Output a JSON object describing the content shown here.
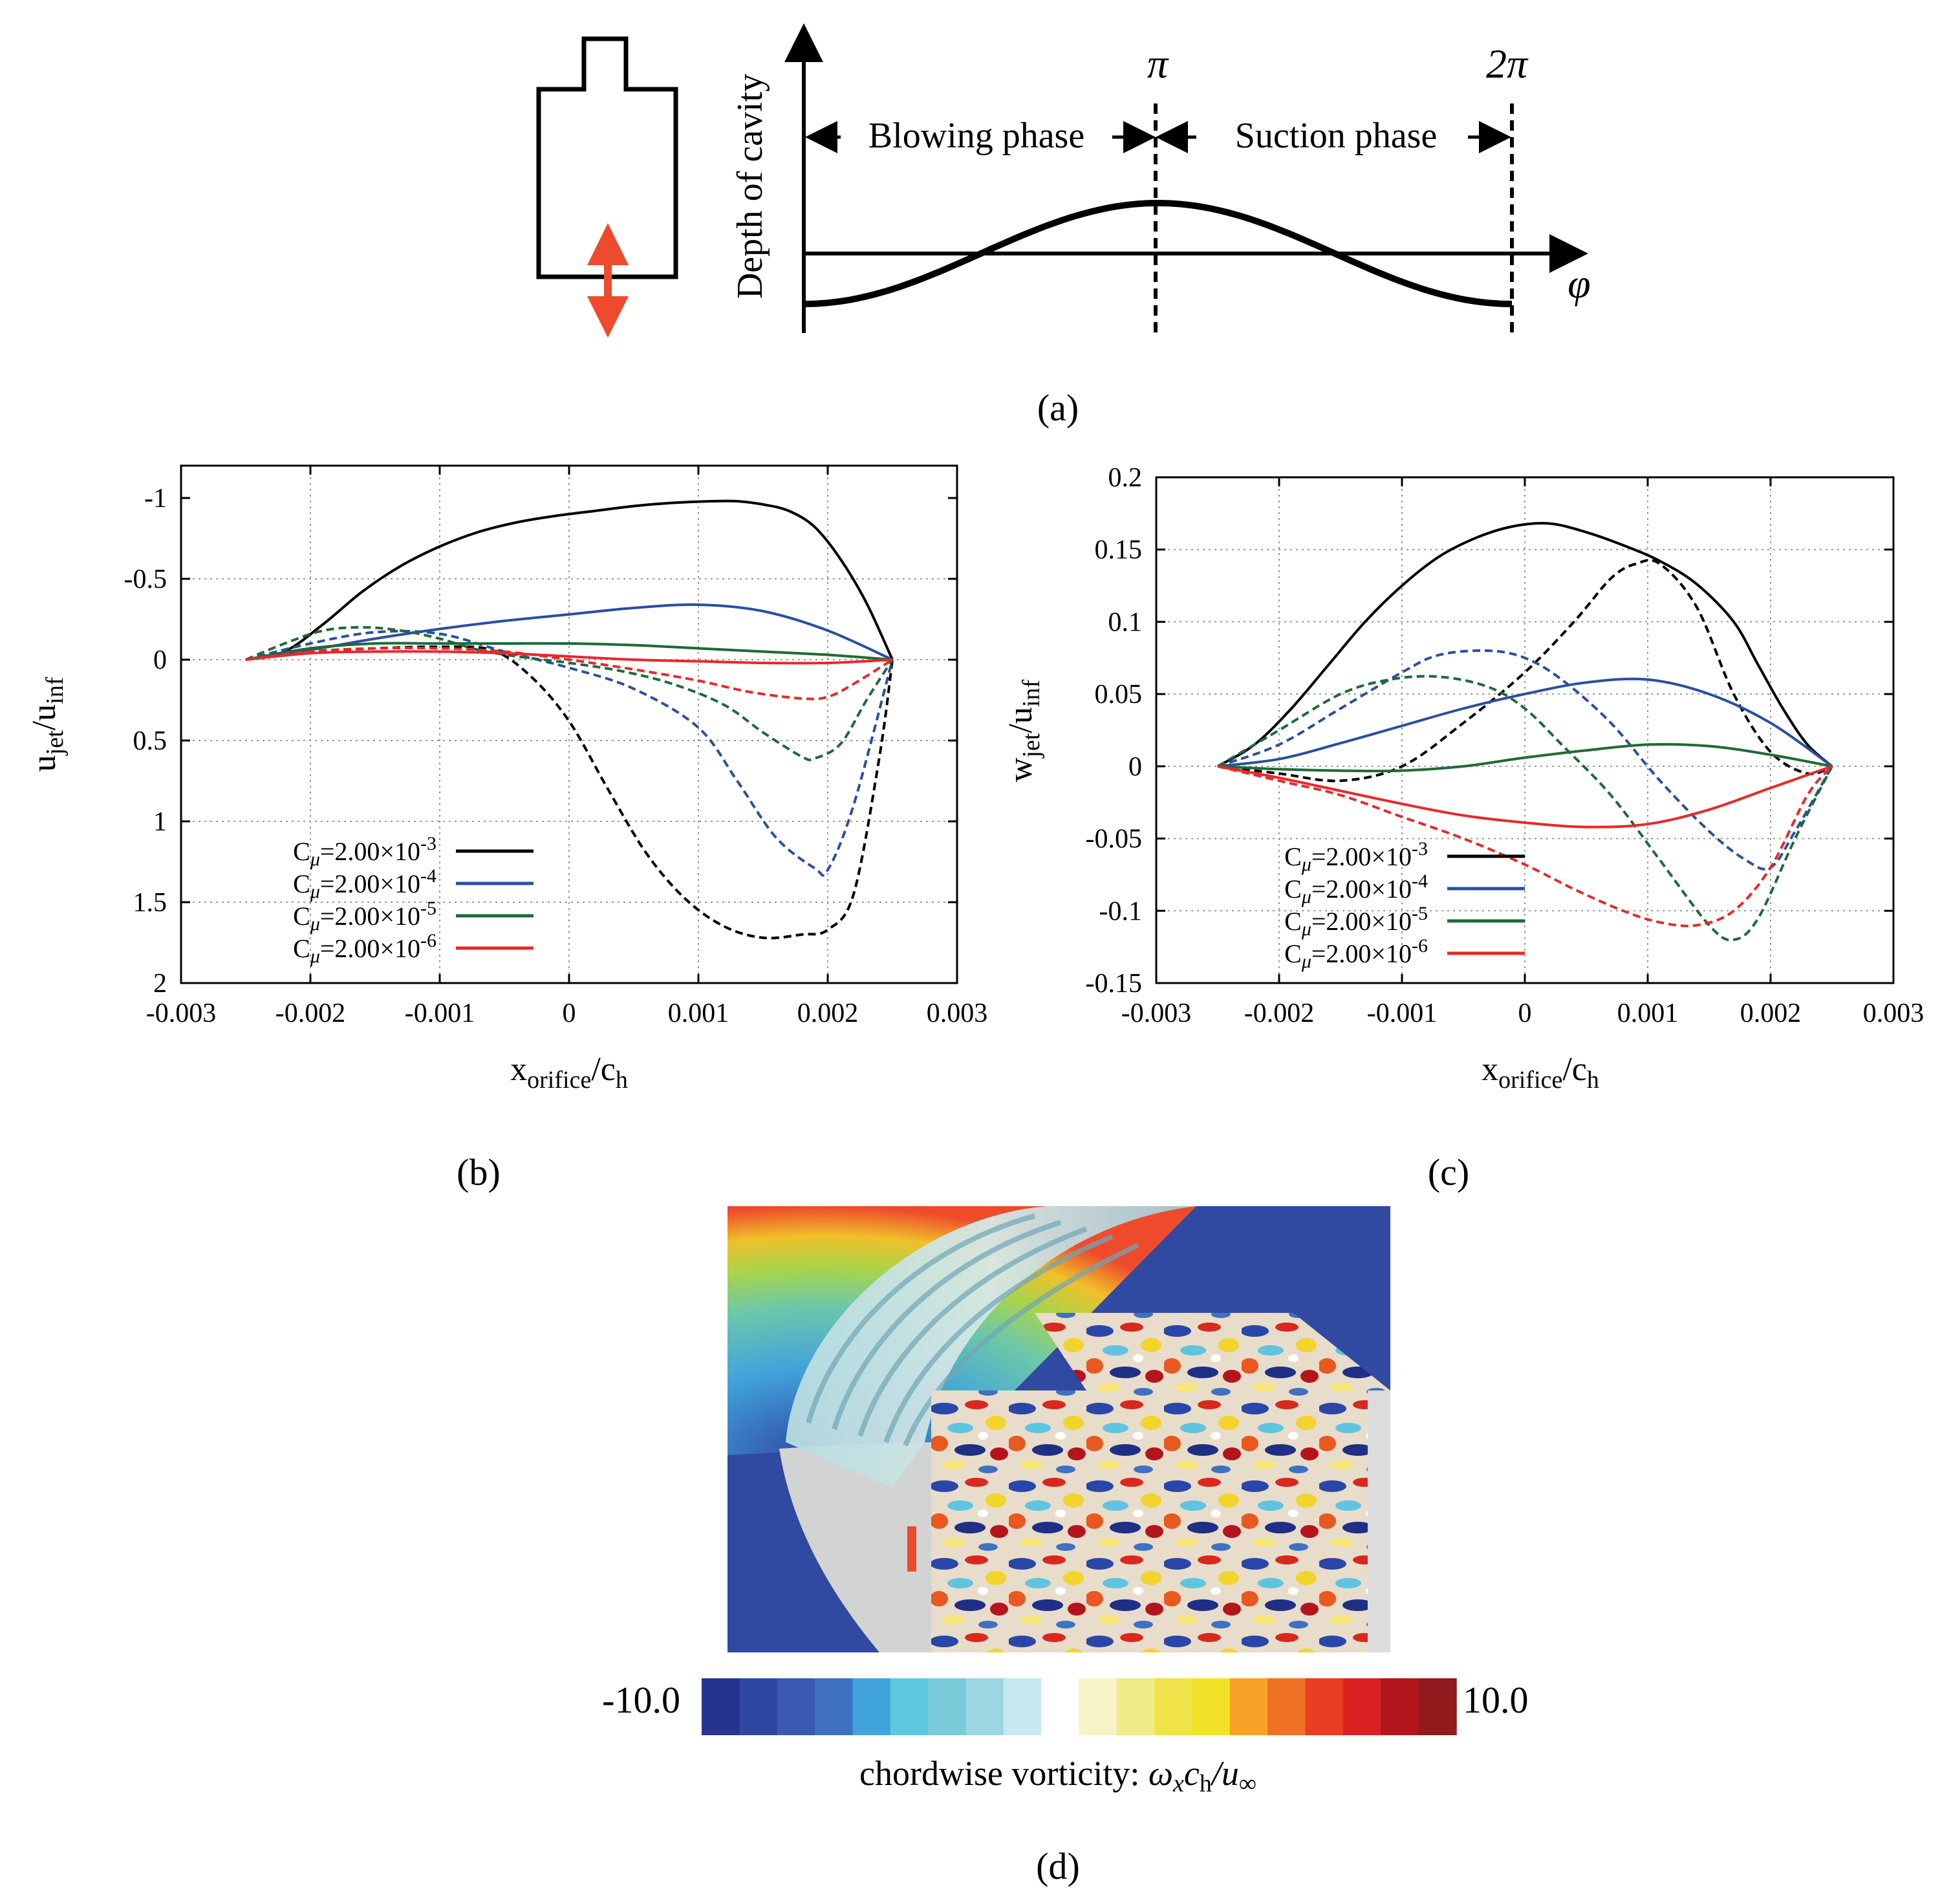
{
  "panel_labels": {
    "a": "(a)",
    "b": "(b)",
    "c": "(c)",
    "d": "(d)"
  },
  "panel_a": {
    "ylabel": "Depth of cavity",
    "xlabel": "φ",
    "pi_label": "π",
    "two_pi_label": "2π",
    "blowing_label": "Blowing phase",
    "suction_label": "Suction phase",
    "arrow_color": "#ee4a2c"
  },
  "chart_data": [
    {
      "id": "b",
      "type": "line",
      "xlabel_main": "x",
      "xlabel_sub": "orifice",
      "xlabel_tail": "/c",
      "xlabel_sub2": "h",
      "ylabel_main": "u",
      "ylabel_sub": "jet",
      "ylabel_tail": "/u",
      "ylabel_sub2": "inf",
      "xlim": [
        -0.003,
        0.003
      ],
      "ylim": [
        2,
        -1.2
      ],
      "xticks": [
        -0.003,
        -0.002,
        -0.001,
        0,
        0.001,
        0.002,
        0.003
      ],
      "xtick_labels": [
        "-0.003",
        "-0.002",
        "-0.001",
        "0",
        "0.001",
        "0.002",
        "0.003"
      ],
      "yticks": [
        -1,
        -0.5,
        0,
        0.5,
        1,
        1.5,
        2
      ],
      "ytick_labels": [
        "-1",
        "-0.5",
        "0",
        "0.5",
        "1",
        "1.5",
        "2"
      ],
      "grid": true,
      "legend": [
        {
          "base": "C",
          "sub": "μ",
          "eq": "=2.00×10",
          "exp": "-3",
          "color": "#000000"
        },
        {
          "base": "C",
          "sub": "μ",
          "eq": "=2.00×10",
          "exp": "-4",
          "color": "#2a4ea3"
        },
        {
          "base": "C",
          "sub": "μ",
          "eq": "=2.00×10",
          "exp": "-5",
          "color": "#1e6a36"
        },
        {
          "base": "C",
          "sub": "μ",
          "eq": "=2.00×10",
          "exp": "-6",
          "color": "#e8282a"
        }
      ],
      "series": [
        {
          "name": "2.00e-3 solid",
          "color": "#000000",
          "dash": false,
          "x": [
            -0.0025,
            -0.0022,
            -0.0019,
            -0.0016,
            -0.0013,
            -0.001,
            -0.0007,
            -0.0004,
            -0.0001,
            0.0002,
            0.0005,
            0.0008,
            0.0011,
            0.0013,
            0.0015,
            0.0017,
            0.0019,
            0.0021,
            0.0023,
            0.0025
          ],
          "y": [
            0,
            -0.05,
            -0.22,
            -0.42,
            -0.58,
            -0.7,
            -0.79,
            -0.85,
            -0.89,
            -0.92,
            -0.95,
            -0.97,
            -0.98,
            -0.98,
            -0.96,
            -0.92,
            -0.82,
            -0.62,
            -0.35,
            0
          ]
        },
        {
          "name": "2.00e-3 dashed",
          "color": "#000000",
          "dash": true,
          "x": [
            -0.0025,
            -0.002,
            -0.0015,
            -0.001,
            -0.0006,
            -0.0003,
            0,
            0.0003,
            0.0006,
            0.0009,
            0.0012,
            0.0015,
            0.0018,
            0.002,
            0.0022,
            0.0024,
            0.0025
          ],
          "y": [
            0,
            -0.05,
            -0.07,
            -0.08,
            -0.06,
            0.1,
            0.38,
            0.8,
            1.2,
            1.48,
            1.65,
            1.72,
            1.7,
            1.67,
            1.45,
            0.6,
            0
          ]
        },
        {
          "name": "2.00e-4 solid",
          "color": "#2a4ea3",
          "dash": false,
          "x": [
            -0.0025,
            -0.002,
            -0.0015,
            -0.001,
            -0.0005,
            0,
            0.0005,
            0.001,
            0.0015,
            0.002,
            0.0025
          ],
          "y": [
            0,
            -0.06,
            -0.13,
            -0.19,
            -0.24,
            -0.28,
            -0.32,
            -0.34,
            -0.3,
            -0.18,
            0
          ]
        },
        {
          "name": "2.00e-4 dashed",
          "color": "#2a4ea3",
          "dash": true,
          "x": [
            -0.0025,
            -0.002,
            -0.0015,
            -0.001,
            -0.0005,
            0,
            0.0005,
            0.001,
            0.0013,
            0.0016,
            0.0019,
            0.002,
            0.0022,
            0.0025
          ],
          "y": [
            0,
            -0.1,
            -0.17,
            -0.16,
            -0.05,
            0.05,
            0.18,
            0.42,
            0.75,
            1.1,
            1.29,
            1.3,
            0.9,
            0
          ]
        },
        {
          "name": "2.00e-5 solid",
          "color": "#1e6a36",
          "dash": false,
          "x": [
            -0.0025,
            -0.002,
            -0.0015,
            -0.001,
            -0.0005,
            0,
            0.0005,
            0.001,
            0.0015,
            0.002,
            0.0025
          ],
          "y": [
            0,
            -0.07,
            -0.1,
            -0.1,
            -0.1,
            -0.1,
            -0.09,
            -0.07,
            -0.05,
            -0.03,
            0
          ]
        },
        {
          "name": "2.00e-5 dashed",
          "color": "#1e6a36",
          "dash": true,
          "x": [
            -0.0025,
            -0.0022,
            -0.0019,
            -0.0016,
            -0.0013,
            -0.001,
            -0.0007,
            -0.0004,
            0,
            0.0004,
            0.0008,
            0.0012,
            0.0015,
            0.0018,
            0.0019,
            0.0021,
            0.0023,
            0.0025
          ],
          "y": [
            0,
            -0.1,
            -0.18,
            -0.2,
            -0.18,
            -0.13,
            -0.06,
            -0.02,
            0.02,
            0.07,
            0.15,
            0.28,
            0.45,
            0.6,
            0.61,
            0.52,
            0.25,
            0
          ]
        },
        {
          "name": "2.00e-6 solid",
          "color": "#e8282a",
          "dash": false,
          "x": [
            -0.0025,
            -0.002,
            -0.0015,
            -0.001,
            -0.0005,
            0,
            0.0005,
            0.001,
            0.0015,
            0.002,
            0.0025
          ],
          "y": [
            0,
            -0.04,
            -0.05,
            -0.05,
            -0.04,
            -0.02,
            0,
            0.01,
            0.02,
            0.02,
            0
          ]
        },
        {
          "name": "2.00e-6 dashed",
          "color": "#e8282a",
          "dash": true,
          "x": [
            -0.0025,
            -0.002,
            -0.0015,
            -0.001,
            -0.0005,
            0,
            0.0005,
            0.001,
            0.0014,
            0.0018,
            0.002,
            0.0022,
            0.0025
          ],
          "y": [
            0,
            -0.05,
            -0.07,
            -0.07,
            -0.05,
            0,
            0.06,
            0.13,
            0.2,
            0.24,
            0.23,
            0.15,
            0
          ]
        }
      ]
    },
    {
      "id": "c",
      "type": "line",
      "xlabel_main": "x",
      "xlabel_sub": "orifice",
      "xlabel_tail": "/c",
      "xlabel_sub2": "h",
      "ylabel_main": "w",
      "ylabel_sub": "jet",
      "ylabel_tail": "/u",
      "ylabel_sub2": "inf",
      "xlim": [
        -0.003,
        0.003
      ],
      "ylim": [
        -0.15,
        0.2
      ],
      "xticks": [
        -0.003,
        -0.002,
        -0.001,
        0,
        0.001,
        0.002,
        0.003
      ],
      "xtick_labels": [
        "-0.003",
        "-0.002",
        "-0.001",
        "0",
        "0.001",
        "0.002",
        "0.003"
      ],
      "yticks": [
        0.2,
        0.15,
        0.1,
        0.05,
        0,
        -0.05,
        -0.1,
        -0.15
      ],
      "ytick_labels": [
        "0.2",
        "0.15",
        "0.1",
        "0.05",
        "0",
        "-0.05",
        "-0.1",
        "-0.15"
      ],
      "grid": true,
      "legend": [
        {
          "base": "C",
          "sub": "μ",
          "eq": "=2.00×10",
          "exp": "-3",
          "color": "#000000"
        },
        {
          "base": "C",
          "sub": "μ",
          "eq": "=2.00×10",
          "exp": "-4",
          "color": "#2a4ea3"
        },
        {
          "base": "C",
          "sub": "μ",
          "eq": "=2.00×10",
          "exp": "-5",
          "color": "#1e6a36"
        },
        {
          "base": "C",
          "sub": "μ",
          "eq": "=2.00×10",
          "exp": "-6",
          "color": "#e8282a"
        }
      ],
      "series": [
        {
          "name": "2.00e-3 solid",
          "color": "#000000",
          "dash": false,
          "x": [
            -0.0025,
            -0.0022,
            -0.0019,
            -0.0016,
            -0.0013,
            -0.001,
            -0.0007,
            -0.0004,
            -0.0001,
            0.0002,
            0.0005,
            0.0008,
            0.0011,
            0.0014,
            0.0017,
            0.0019,
            0.0021,
            0.0023,
            0.0025
          ],
          "y": [
            0,
            0.015,
            0.04,
            0.07,
            0.1,
            0.125,
            0.145,
            0.158,
            0.166,
            0.168,
            0.162,
            0.153,
            0.142,
            0.126,
            0.1,
            0.07,
            0.04,
            0.015,
            0
          ]
        },
        {
          "name": "2.00e-3 dashed",
          "color": "#000000",
          "dash": true,
          "x": [
            -0.0025,
            -0.002,
            -0.0015,
            -0.001,
            -0.0005,
            0,
            0.0004,
            0.0007,
            0.0009,
            0.0011,
            0.0014,
            0.0017,
            0.002,
            0.0023,
            0.0025
          ],
          "y": [
            0,
            -0.005,
            -0.01,
            0,
            0.03,
            0.065,
            0.1,
            0.13,
            0.14,
            0.14,
            0.11,
            0.05,
            0.01,
            -0.005,
            0
          ]
        },
        {
          "name": "2.00e-4 solid",
          "color": "#2a4ea3",
          "dash": false,
          "x": [
            -0.0025,
            -0.002,
            -0.0015,
            -0.001,
            -0.0005,
            0,
            0.0005,
            0.001,
            0.0015,
            0.002,
            0.0025
          ],
          "y": [
            0,
            0.005,
            0.016,
            0.028,
            0.04,
            0.05,
            0.058,
            0.06,
            0.05,
            0.03,
            0
          ]
        },
        {
          "name": "2.00e-4 dashed",
          "color": "#2a4ea3",
          "dash": true,
          "x": [
            -0.0025,
            -0.002,
            -0.0015,
            -0.001,
            -0.0007,
            -0.0003,
            0,
            0.0003,
            0.0007,
            0.0011,
            0.0015,
            0.0018,
            0.002,
            0.0022,
            0.0025
          ],
          "y": [
            0,
            0.015,
            0.04,
            0.065,
            0.077,
            0.08,
            0.075,
            0.06,
            0.03,
            -0.01,
            -0.045,
            -0.065,
            -0.07,
            -0.045,
            0
          ]
        },
        {
          "name": "2.00e-5 solid",
          "color": "#1e6a36",
          "dash": false,
          "x": [
            -0.0025,
            -0.002,
            -0.0015,
            -0.001,
            -0.0005,
            0,
            0.0005,
            0.001,
            0.0015,
            0.002,
            0.0025
          ],
          "y": [
            0,
            -0.002,
            -0.003,
            -0.003,
            0,
            0.006,
            0.011,
            0.015,
            0.014,
            0.008,
            0
          ]
        },
        {
          "name": "2.00e-5 dashed",
          "color": "#1e6a36",
          "dash": true,
          "x": [
            -0.0025,
            -0.002,
            -0.0015,
            -0.0011,
            -0.0007,
            -0.0003,
            0,
            0.0003,
            0.0007,
            0.0011,
            0.0015,
            0.0017,
            0.0019,
            0.0022,
            0.0025
          ],
          "y": [
            0,
            0.025,
            0.05,
            0.06,
            0.062,
            0.055,
            0.04,
            0.015,
            -0.02,
            -0.065,
            -0.11,
            -0.12,
            -0.105,
            -0.05,
            0
          ]
        },
        {
          "name": "2.00e-6 solid",
          "color": "#e8282a",
          "dash": false,
          "x": [
            -0.0025,
            -0.002,
            -0.0015,
            -0.001,
            -0.0005,
            0,
            0.0005,
            0.001,
            0.0015,
            0.002,
            0.0025
          ],
          "y": [
            0,
            -0.008,
            -0.017,
            -0.026,
            -0.034,
            -0.039,
            -0.042,
            -0.04,
            -0.03,
            -0.015,
            0
          ]
        },
        {
          "name": "2.00e-6 dashed",
          "color": "#e8282a",
          "dash": true,
          "x": [
            -0.0025,
            -0.002,
            -0.0015,
            -0.001,
            -0.0005,
            0,
            0.0004,
            0.0008,
            0.0011,
            0.0014,
            0.0017,
            0.002,
            0.0023,
            0.0025
          ],
          "y": [
            0,
            -0.01,
            -0.02,
            -0.035,
            -0.05,
            -0.068,
            -0.085,
            -0.1,
            -0.108,
            -0.11,
            -0.1,
            -0.07,
            -0.02,
            0
          ]
        }
      ]
    }
  ],
  "panel_d": {
    "colorbar_min": "-10.0",
    "colorbar_max": "10.0",
    "caption_prefix": "chordwise vorticity: ",
    "caption_math": "ω",
    "caption_sub_x": "x",
    "caption_c": "c",
    "caption_sub_h": "h",
    "caption_u": "/u",
    "caption_sub_inf": "∞",
    "colorbar_colors": [
      "#26348e",
      "#2f47a2",
      "#3a59b3",
      "#3f71c1",
      "#41a3dc",
      "#5ec8e0",
      "#79cbd9",
      "#9bd6e2",
      "#c6e8ef",
      "#ffffff",
      "#f6f4c6",
      "#efec89",
      "#f0e34a",
      "#f2e227",
      "#f6a228",
      "#ef7125",
      "#e83e22",
      "#d92124",
      "#b1161d",
      "#911a1d"
    ]
  }
}
